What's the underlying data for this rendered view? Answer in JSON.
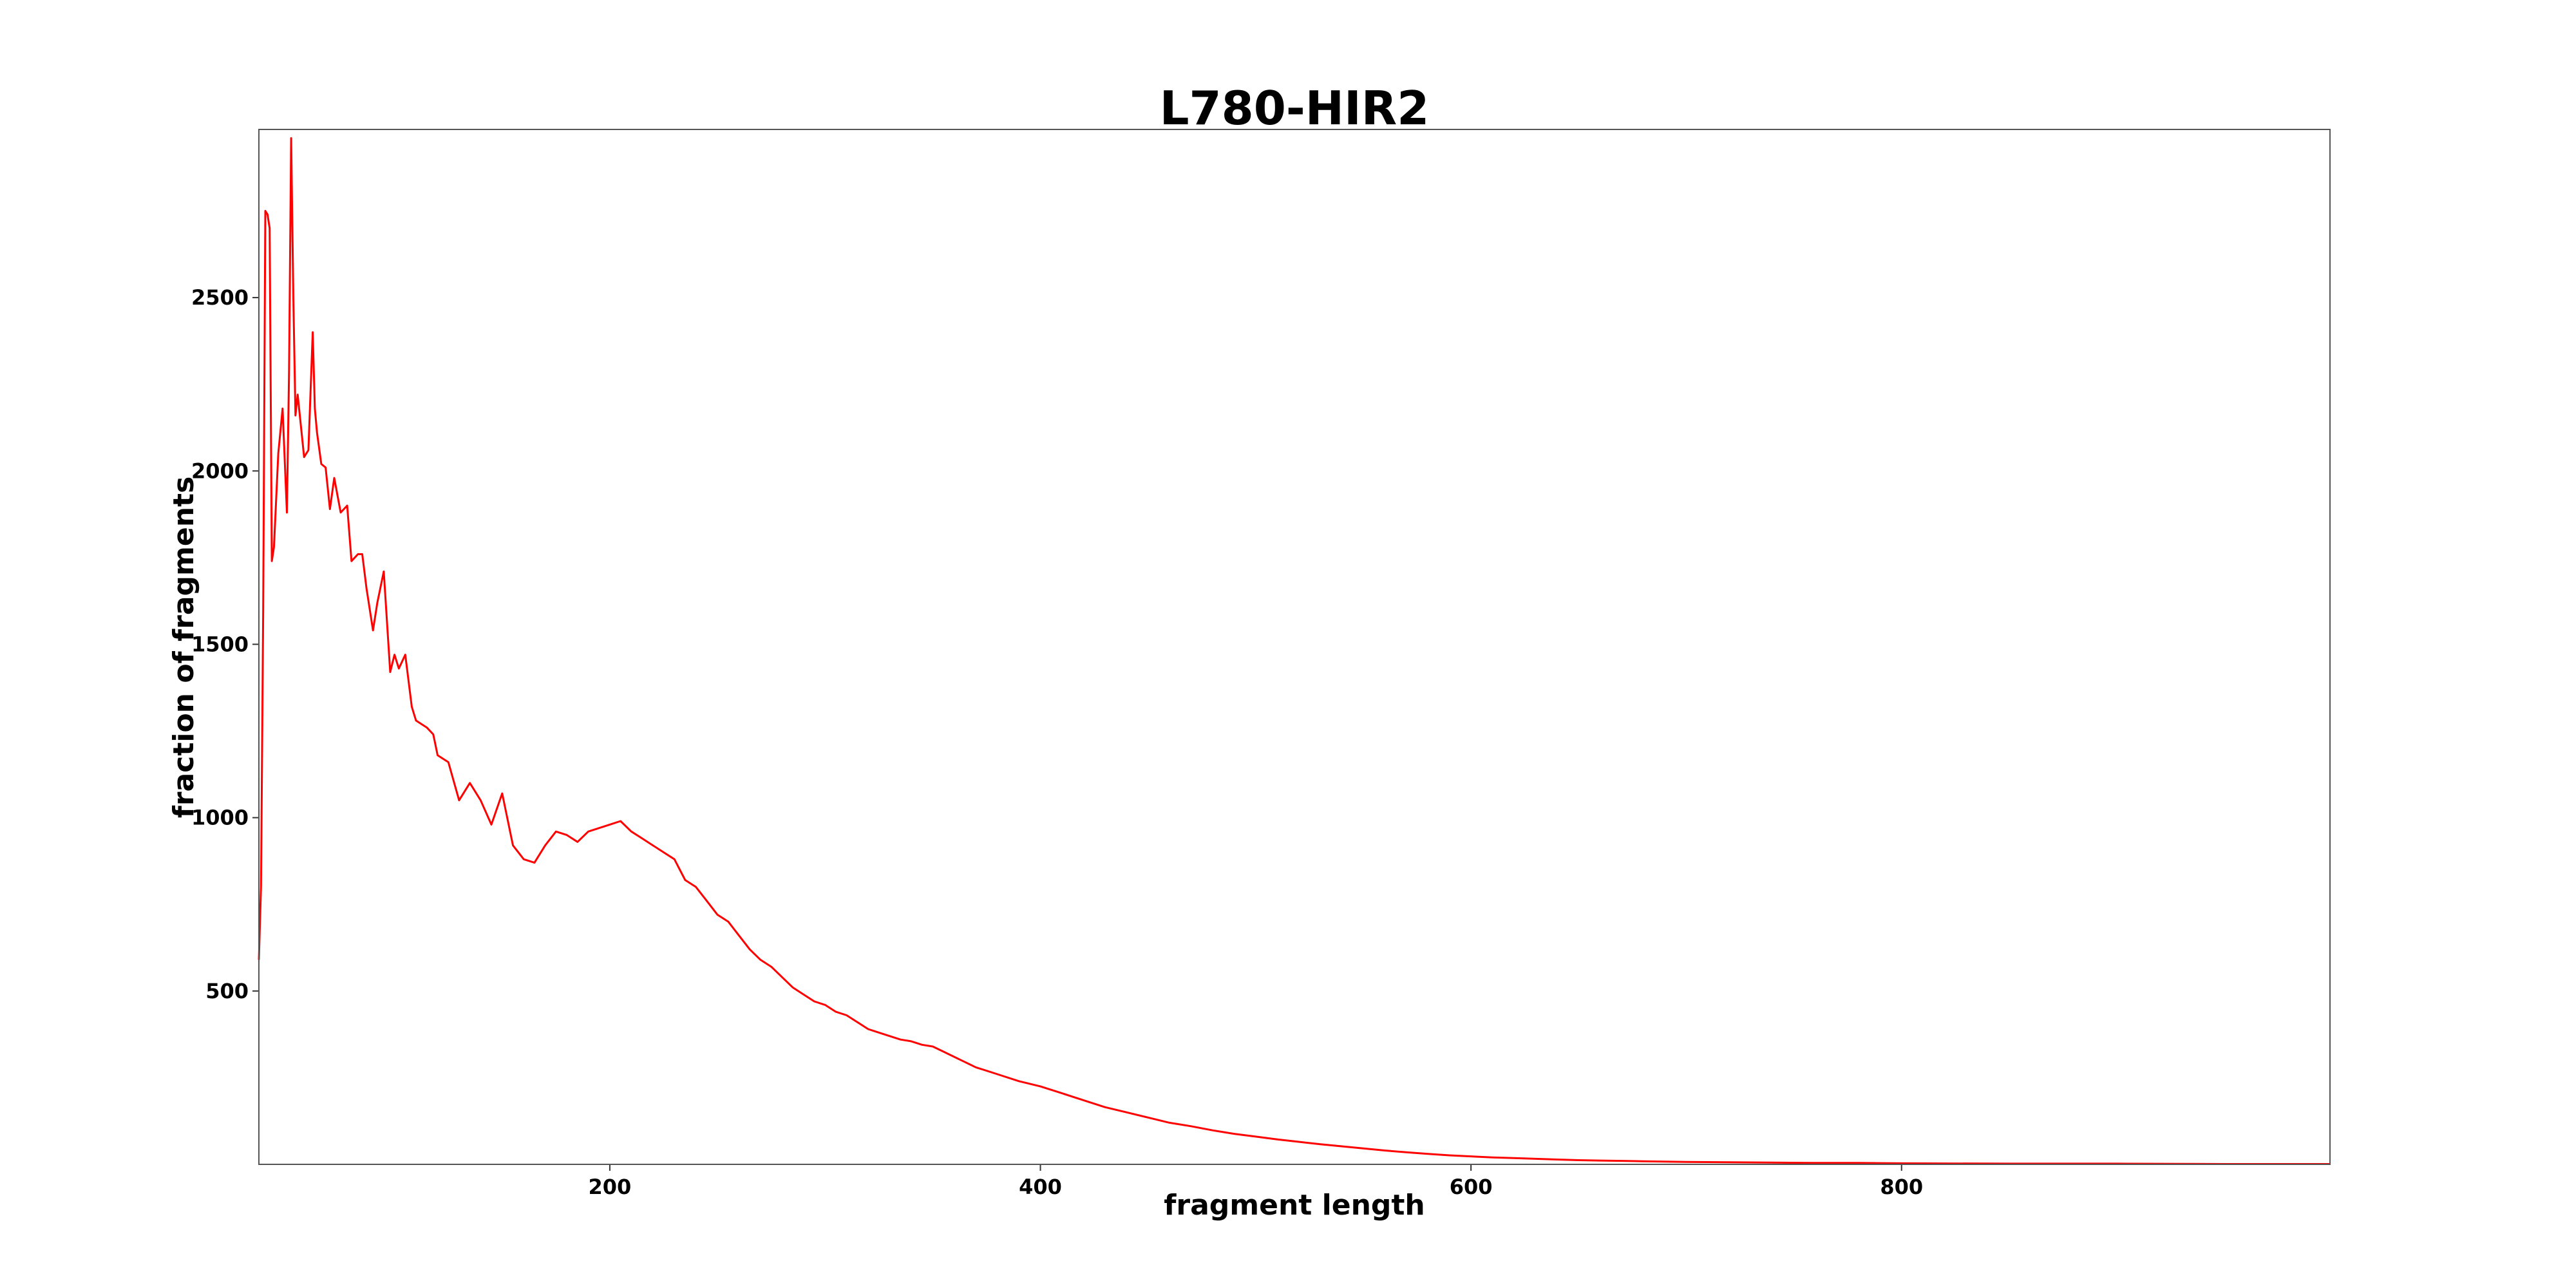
{
  "chart_data": {
    "type": "line",
    "title": "L780-HIR2",
    "xlabel": "fragment length",
    "ylabel": "fraction of fragments",
    "xlim": [
      37,
      999
    ],
    "ylim": [
      0,
      2985
    ],
    "xticks": [
      200,
      400,
      600,
      800
    ],
    "yticks": [
      500,
      1000,
      1500,
      2000,
      2500
    ],
    "grid": false,
    "legend": "none",
    "colors": {
      "series": "#ff0000"
    },
    "series": [
      {
        "x": [
          37,
          38,
          39,
          40,
          41,
          42,
          43,
          44,
          46,
          48,
          50,
          51,
          52,
          53,
          54,
          55,
          57,
          58,
          60,
          62,
          63,
          64,
          66,
          68,
          70,
          72,
          75,
          78,
          80,
          83,
          85,
          87,
          90,
          92,
          95,
          98,
          100,
          102,
          105,
          108,
          110,
          115,
          118,
          120,
          125,
          130,
          135,
          140,
          145,
          150,
          155,
          160,
          165,
          170,
          175,
          180,
          185,
          190,
          195,
          200,
          205,
          210,
          215,
          220,
          225,
          230,
          235,
          240,
          245,
          250,
          255,
          260,
          265,
          270,
          275,
          280,
          285,
          290,
          295,
          300,
          305,
          310,
          315,
          320,
          325,
          330,
          335,
          340,
          345,
          350,
          355,
          360,
          365,
          370,
          380,
          390,
          400,
          410,
          420,
          430,
          440,
          450,
          460,
          470,
          480,
          490,
          500,
          510,
          520,
          530,
          540,
          550,
          560,
          570,
          580,
          590,
          600,
          610,
          620,
          630,
          640,
          650,
          660,
          670,
          680,
          690,
          700,
          720,
          740,
          760,
          780,
          800,
          850,
          900,
          950,
          999
        ],
        "y": [
          590,
          800,
          1600,
          2750,
          2740,
          2700,
          1740,
          1780,
          2050,
          2180,
          1880,
          2280,
          2960,
          2500,
          2160,
          2220,
          2100,
          2040,
          2060,
          2400,
          2180,
          2110,
          2020,
          2010,
          1890,
          1980,
          1880,
          1900,
          1740,
          1760,
          1760,
          1660,
          1540,
          1620,
          1710,
          1420,
          1470,
          1430,
          1470,
          1320,
          1280,
          1260,
          1240,
          1180,
          1160,
          1050,
          1100,
          1050,
          980,
          1070,
          920,
          880,
          870,
          920,
          960,
          950,
          930,
          960,
          970,
          980,
          990,
          960,
          940,
          920,
          900,
          880,
          820,
          800,
          760,
          720,
          700,
          660,
          620,
          590,
          570,
          540,
          510,
          490,
          470,
          460,
          440,
          430,
          410,
          390,
          380,
          370,
          360,
          355,
          345,
          340,
          325,
          310,
          295,
          280,
          260,
          240,
          225,
          205,
          185,
          165,
          150,
          135,
          120,
          110,
          98,
          88,
          80,
          72,
          65,
          58,
          52,
          46,
          40,
          35,
          30,
          26,
          23,
          20,
          18,
          16,
          14,
          12,
          11,
          10,
          9,
          8,
          7,
          6,
          5,
          4,
          4,
          3,
          2,
          2,
          1,
          1
        ]
      }
    ]
  }
}
